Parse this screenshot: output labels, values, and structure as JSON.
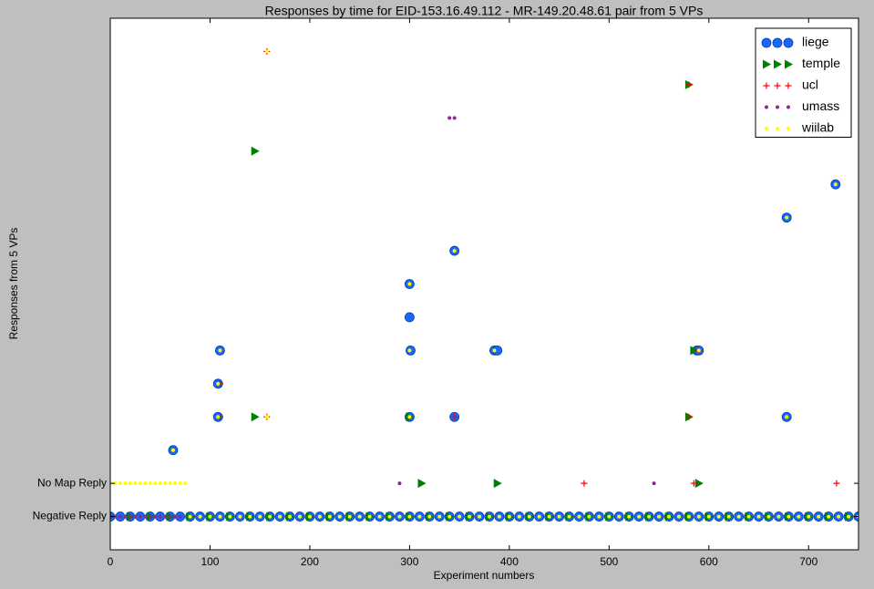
{
  "chart_data": {
    "type": "scatter",
    "title": "Responses by time for EID-153.16.49.112 - MR-149.20.48.61 pair from 5 VPs",
    "x_label": "Experiment numbers",
    "y_label": "Responses from 5 VPs",
    "xlim": [
      0,
      750
    ],
    "xticks": [
      0,
      100,
      200,
      300,
      400,
      500,
      600,
      700
    ],
    "ylim": [
      -1,
      15
    ],
    "yticks": [
      {
        "value": 0,
        "label": "Negative Reply"
      },
      {
        "value": 1,
        "label": "No Map Reply"
      }
    ],
    "legend": "upper right",
    "series": [
      {
        "name": "liege",
        "color": "#1a66ff",
        "marker": "circle",
        "x": [
          63,
          108,
          108,
          110,
          300,
          300,
          300,
          301,
          345,
          345,
          385,
          388,
          588,
          590,
          678,
          678,
          727,
          0,
          10,
          20,
          30,
          40,
          50,
          60,
          70,
          80,
          90,
          100,
          110,
          120,
          130,
          140,
          150,
          160,
          170,
          180,
          190,
          200,
          210,
          220,
          230,
          240,
          250,
          260,
          270,
          280,
          290,
          300,
          310,
          320,
          330,
          340,
          350,
          360,
          370,
          380,
          390,
          400,
          410,
          420,
          430,
          440,
          450,
          460,
          470,
          480,
          490,
          500,
          510,
          520,
          530,
          540,
          550,
          560,
          570,
          580,
          590,
          600,
          610,
          620,
          630,
          640,
          650,
          660,
          670,
          680,
          690,
          700,
          710,
          720,
          730,
          740,
          750
        ],
        "y": [
          2,
          3,
          4,
          5,
          3,
          6,
          7,
          5,
          3,
          8,
          5,
          5,
          5,
          5,
          3,
          9,
          10,
          0,
          0,
          0,
          0,
          0,
          0,
          0,
          0,
          0,
          0,
          0,
          0,
          0,
          0,
          0,
          0,
          0,
          0,
          0,
          0,
          0,
          0,
          0,
          0,
          0,
          0,
          0,
          0,
          0,
          0,
          0,
          0,
          0,
          0,
          0,
          0,
          0,
          0,
          0,
          0,
          0,
          0,
          0,
          0,
          0,
          0,
          0,
          0,
          0,
          0,
          0,
          0,
          0,
          0,
          0,
          0,
          0,
          0,
          0,
          0,
          0,
          0,
          0,
          0,
          0,
          0,
          0,
          0,
          0,
          0,
          0,
          0,
          0,
          0,
          0,
          0
        ]
      },
      {
        "name": "temple",
        "color": "#008000",
        "marker": "triangle",
        "x": [
          145,
          145,
          580,
          580,
          300,
          312,
          388,
          590,
          585,
          0,
          20,
          40,
          60,
          80,
          100,
          120,
          140,
          160,
          180,
          200,
          220,
          240,
          260,
          280,
          300,
          320,
          340,
          360,
          380,
          400,
          420,
          440,
          460,
          480,
          500,
          520,
          540,
          560,
          580,
          600,
          620,
          640,
          660,
          680,
          700,
          720,
          740
        ],
        "y": [
          11,
          3,
          13,
          3,
          3,
          1,
          1,
          1,
          5,
          0,
          0,
          0,
          0,
          0,
          0,
          0,
          0,
          0,
          0,
          0,
          0,
          0,
          0,
          0,
          0,
          0,
          0,
          0,
          0,
          0,
          0,
          0,
          0,
          0,
          0,
          0,
          0,
          0,
          0,
          0,
          0,
          0,
          0,
          0,
          0,
          0,
          0
        ]
      },
      {
        "name": "ucl",
        "color": "#ff0000",
        "marker": "plus",
        "x": [
          157,
          157,
          110,
          110,
          580,
          580,
          345,
          475,
          585,
          728,
          590
        ],
        "y": [
          14,
          3,
          4,
          3,
          13,
          3,
          3,
          1,
          1,
          1,
          5
        ]
      },
      {
        "name": "umass",
        "color": "#8b2a8b",
        "marker": "dot",
        "x": [
          340,
          345,
          290,
          545,
          345,
          590,
          0,
          5,
          10,
          15,
          20,
          25,
          30,
          35,
          40,
          45,
          50,
          55,
          60,
          65,
          70
        ],
        "y": [
          12,
          12,
          1,
          1,
          3,
          5,
          0,
          0,
          0,
          0,
          0,
          0,
          0,
          0,
          0,
          0,
          0,
          0,
          0,
          0,
          0
        ]
      },
      {
        "name": "wiilab",
        "color": "#ffff00",
        "marker": "dot",
        "x": [
          63,
          108,
          108,
          110,
          300,
          300,
          300,
          345,
          385,
          678,
          727,
          157,
          157,
          678,
          590,
          0,
          5,
          10,
          15,
          20,
          25,
          30,
          35,
          40,
          45,
          50,
          55,
          60,
          65,
          70,
          75,
          80,
          90,
          100,
          110,
          120,
          130,
          140,
          150,
          160,
          170,
          180,
          190,
          200,
          210,
          220,
          230,
          240,
          250,
          260,
          270,
          280,
          290,
          300,
          310,
          320,
          330,
          340,
          350,
          360,
          370,
          380,
          390,
          400,
          410,
          420,
          430,
          440,
          450,
          460,
          470,
          480,
          490,
          500,
          510,
          520,
          530,
          540,
          550,
          560,
          570,
          580,
          590,
          600,
          610,
          620,
          630,
          640,
          650,
          660,
          670,
          680,
          690,
          700,
          710,
          720,
          730,
          740,
          750
        ],
        "y": [
          2,
          3,
          4,
          5,
          3,
          7,
          5,
          8,
          5,
          9,
          10,
          14,
          3,
          3,
          5,
          1,
          1,
          1,
          1,
          1,
          1,
          1,
          1,
          1,
          1,
          1,
          1,
          1,
          1,
          1,
          1,
          0,
          0,
          0,
          0,
          0,
          0,
          0,
          0,
          0,
          0,
          0,
          0,
          0,
          0,
          0,
          0,
          0,
          0,
          0,
          0,
          0,
          0,
          0,
          0,
          0,
          0,
          0,
          0,
          0,
          0,
          0,
          0,
          0,
          0,
          0,
          0,
          0,
          0,
          0,
          0,
          0,
          0,
          0,
          0,
          0,
          0,
          0,
          0,
          0,
          0,
          0,
          0,
          0,
          0,
          0,
          0,
          0,
          0,
          0,
          0,
          0,
          0,
          0,
          0,
          0,
          0,
          0,
          0
        ]
      }
    ]
  }
}
